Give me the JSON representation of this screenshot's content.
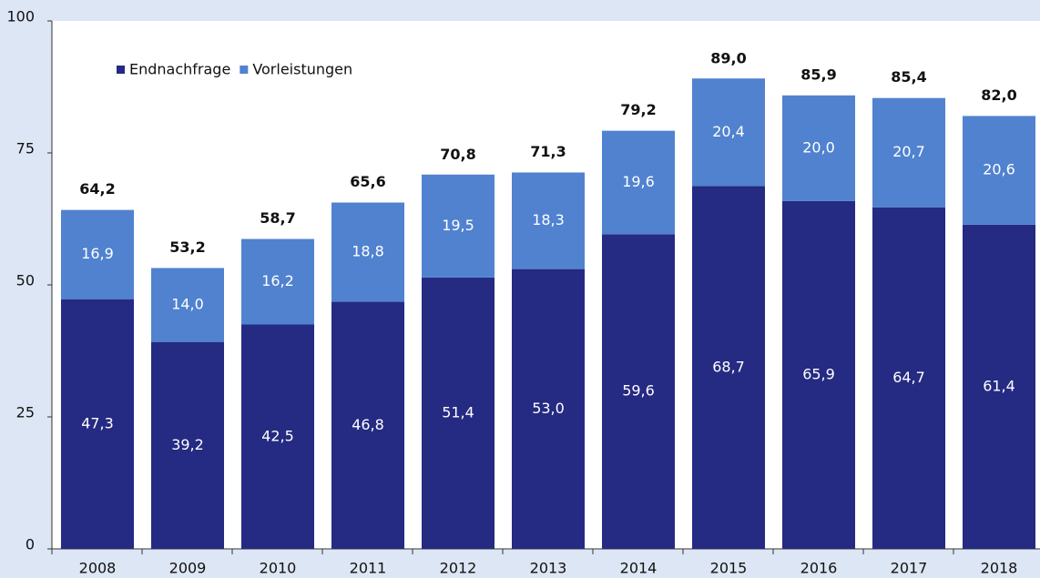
{
  "chart_data": {
    "type": "stacked_bar",
    "categories": [
      "2008",
      "2009",
      "2010",
      "2011",
      "2012",
      "2013",
      "2014",
      "2015",
      "2016",
      "2017",
      "2018"
    ],
    "series": [
      {
        "name": "Endnachfrage",
        "color": "#252a82",
        "values": [
          47.3,
          39.2,
          42.5,
          46.8,
          51.4,
          53.0,
          59.6,
          68.7,
          65.9,
          64.7,
          61.4
        ],
        "value_labels": [
          "47,3",
          "39,2",
          "42,5",
          "46,8",
          "51,4",
          "53,0",
          "59,6",
          "68,7",
          "65,9",
          "64,7",
          "61,4"
        ]
      },
      {
        "name": "Vorleistungen",
        "color": "#5082cf",
        "values": [
          16.9,
          14.0,
          16.2,
          18.8,
          19.5,
          18.3,
          19.6,
          20.4,
          20.0,
          20.7,
          20.6
        ],
        "value_labels": [
          "16,9",
          "14,0",
          "16,2",
          "18,8",
          "19,5",
          "18,3",
          "19,6",
          "20,4",
          "20,0",
          "20,7",
          "20,6"
        ]
      }
    ],
    "totals": {
      "values": [
        64.2,
        53.2,
        58.7,
        65.6,
        70.8,
        71.3,
        79.2,
        89.0,
        85.9,
        85.4,
        82.0
      ],
      "value_labels": [
        "64,2",
        "53,2",
        "58,7",
        "65,6",
        "70,8",
        "71,3",
        "79,2",
        "89,0",
        "85,9",
        "85,4",
        "82,0"
      ]
    },
    "ylim": [
      0,
      100
    ],
    "yticks": [
      0,
      25,
      50,
      75,
      100
    ],
    "grid": false,
    "legend": "upper left"
  }
}
